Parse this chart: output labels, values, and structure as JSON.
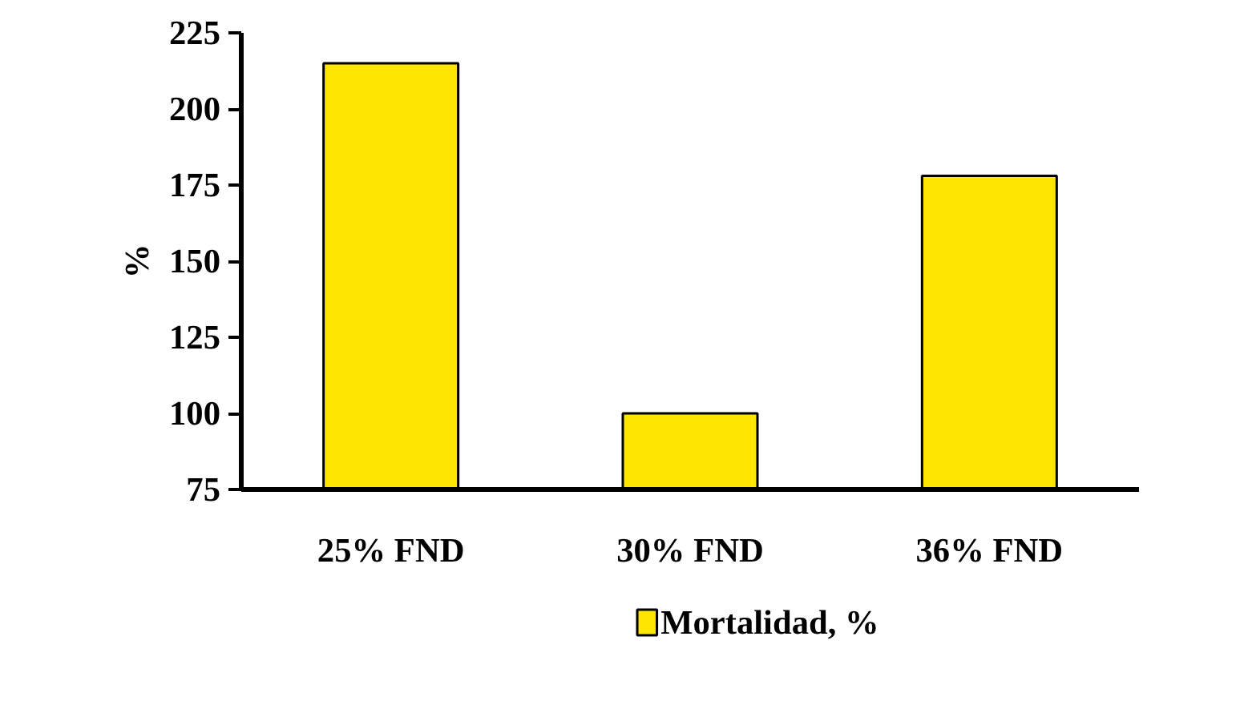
{
  "chart_data": {
    "type": "bar",
    "ylabel": "%",
    "categories": [
      "25% FND",
      "30% FND",
      "36% FND"
    ],
    "series": [
      {
        "name": "Mortalidad, %",
        "color": "#ffe600",
        "values": [
          215,
          100,
          178
        ]
      }
    ],
    "ylim": [
      75,
      225
    ],
    "yticks": [
      75,
      100,
      125,
      150,
      175,
      200,
      225
    ],
    "grid": false,
    "legend": "bottom"
  }
}
